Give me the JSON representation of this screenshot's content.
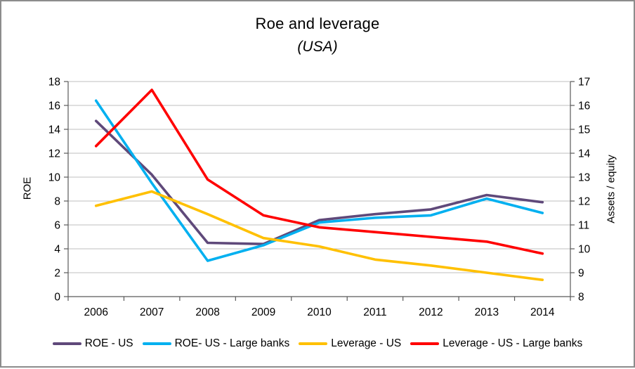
{
  "chart_data": {
    "type": "line",
    "title": "Roe and leverage",
    "subtitle": "(USA)",
    "ylabel_left": "ROE",
    "ylabel_right": "Assets / equity",
    "left_axis": {
      "min": 0,
      "max": 18,
      "step": 2
    },
    "right_axis": {
      "min": 8,
      "max": 17,
      "step": 1
    },
    "grid": true,
    "legend_position": "bottom",
    "categories": [
      "2006",
      "2007",
      "2008",
      "2009",
      "2010",
      "2011",
      "2012",
      "2013",
      "2014"
    ],
    "series": [
      {
        "name": "ROE - US",
        "axis": "left",
        "color": "#5F497A",
        "values": [
          14.7,
          10.2,
          4.5,
          4.4,
          6.4,
          6.9,
          7.3,
          8.5,
          7.9
        ]
      },
      {
        "name": "ROE- US - Large banks",
        "axis": "left",
        "color": "#00B0F0",
        "values": [
          16.4,
          9.5,
          3.0,
          4.3,
          6.2,
          6.6,
          6.8,
          8.2,
          7.0
        ]
      },
      {
        "name": "Leverage - US",
        "axis": "right",
        "color": "#FFC000",
        "values": [
          11.8,
          12.4,
          11.45,
          10.45,
          10.1,
          9.55,
          9.3,
          9.0,
          8.7
        ]
      },
      {
        "name": "Leverage - US - Large banks",
        "axis": "right",
        "color": "#FF0000",
        "values": [
          14.3,
          16.65,
          12.9,
          11.4,
          10.9,
          10.7,
          10.5,
          10.3,
          9.8
        ]
      }
    ],
    "colors": {
      "grid": "#BFBFBF",
      "axis": "#595959",
      "tick": "#595959",
      "text": "#000000",
      "frame_border": "#8C8C8C",
      "background": "#FFFFFF"
    }
  }
}
